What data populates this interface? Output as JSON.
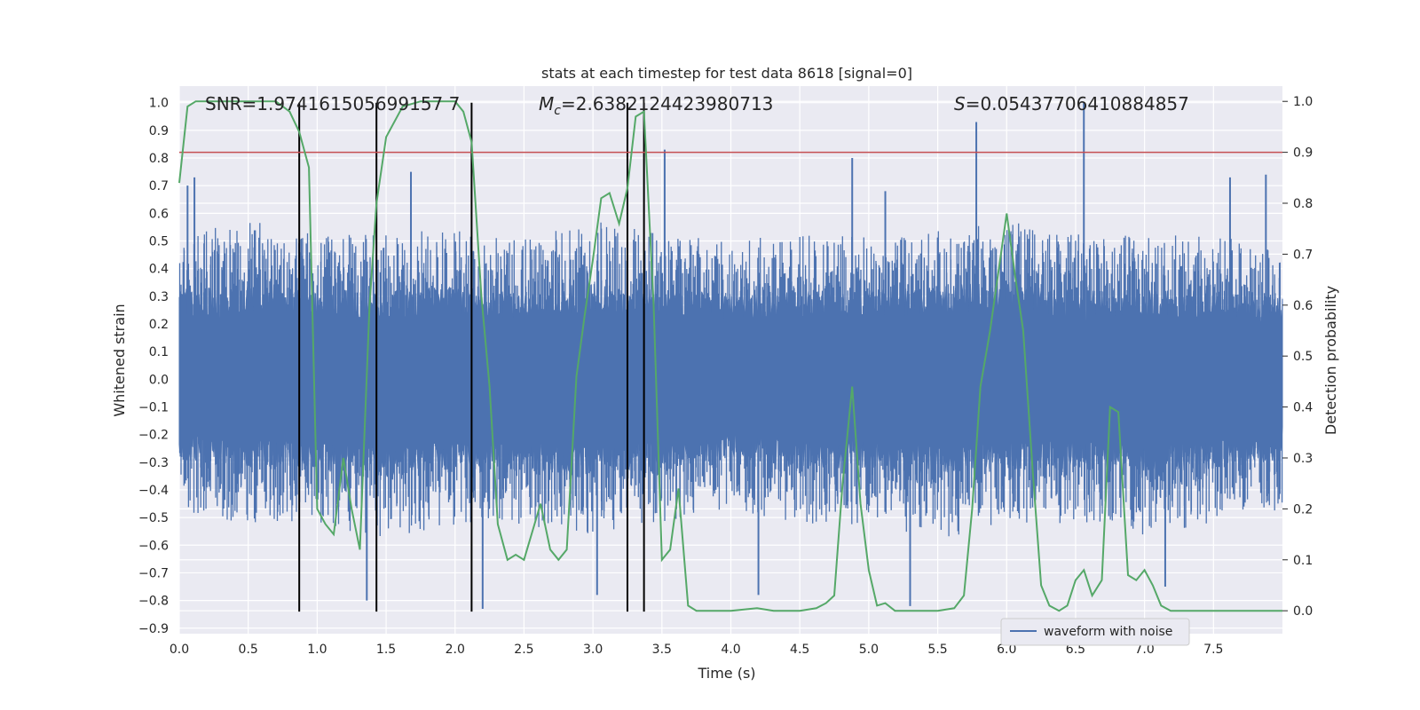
{
  "chart_data": {
    "type": "line",
    "title": "stats at each timestep for test data 8618 [signal=0]",
    "xlabel": "Time (s)",
    "ylabel_left": "Whitened strain",
    "ylabel_right": "Detection probability",
    "xlim": [
      0,
      8
    ],
    "ylim_left": [
      -0.92,
      1.06
    ],
    "ylim_right": [
      -0.045,
      1.03
    ],
    "x_ticks": [
      "0.0",
      "0.5",
      "1.0",
      "1.5",
      "2.0",
      "2.5",
      "3.0",
      "3.5",
      "4.0",
      "4.5",
      "5.0",
      "5.5",
      "6.0",
      "6.5",
      "7.0",
      "7.5"
    ],
    "y_left_ticks": [
      "1.0",
      "0.9",
      "0.8",
      "0.7",
      "0.6",
      "0.5",
      "0.4",
      "0.3",
      "0.2",
      "0.1",
      "0.0",
      "−0.1",
      "−0.2",
      "−0.3",
      "−0.4",
      "−0.5",
      "−0.6",
      "−0.7",
      "−0.8",
      "−0.9"
    ],
    "y_right_ticks": [
      "1.0",
      "0.9",
      "0.8",
      "0.7",
      "0.6",
      "0.5",
      "0.4",
      "0.3",
      "0.2",
      "0.1",
      "0.0"
    ],
    "grid": true,
    "legend": {
      "position": "lower-right",
      "entries": [
        "waveform with noise"
      ]
    },
    "annotations": {
      "snr": "SNR=1.974161505699157 7",
      "mc_symbol": "M",
      "mc_sub": "c",
      "mc_value": "=2.6382124423980713",
      "s_symbol": "S",
      "s_value": "=0.05437706410884857"
    },
    "threshold_right": 0.9,
    "vertical_markers_x": [
      0.87,
      1.43,
      2.12,
      3.25,
      3.37
    ],
    "waveform_envelope": {
      "x": [
        0.0,
        0.5,
        1.0,
        1.5,
        2.0,
        2.5,
        3.0,
        3.5,
        4.0,
        4.5,
        5.0,
        5.5,
        6.0,
        6.5,
        7.0,
        7.5,
        8.0
      ],
      "upper": [
        0.5,
        0.55,
        0.5,
        0.5,
        0.52,
        0.48,
        0.55,
        0.5,
        0.48,
        0.5,
        0.5,
        0.52,
        0.55,
        0.5,
        0.5,
        0.5,
        0.45
      ],
      "lower": [
        -0.45,
        -0.5,
        -0.5,
        -0.55,
        -0.5,
        -0.5,
        -0.55,
        -0.5,
        -0.45,
        -0.5,
        -0.5,
        -0.55,
        -0.5,
        -0.5,
        -0.55,
        -0.5,
        -0.45
      ],
      "spikes": [
        {
          "x": 5.78,
          "y": 0.93
        },
        {
          "x": 6.56,
          "y": 1.0
        },
        {
          "x": 0.06,
          "y": 0.7
        },
        {
          "x": 0.11,
          "y": 0.73
        },
        {
          "x": 1.68,
          "y": 0.75
        },
        {
          "x": 4.88,
          "y": 0.8
        },
        {
          "x": 3.52,
          "y": 0.83
        },
        {
          "x": 2.2,
          "y": -0.83
        },
        {
          "x": 5.3,
          "y": -0.82
        },
        {
          "x": 1.36,
          "y": -0.8
        },
        {
          "x": 3.03,
          "y": -0.78
        },
        {
          "x": 4.2,
          "y": -0.78
        },
        {
          "x": 7.15,
          "y": -0.75
        },
        {
          "x": 5.12,
          "y": 0.68
        },
        {
          "x": 7.62,
          "y": 0.73
        },
        {
          "x": 7.88,
          "y": 0.74
        }
      ]
    },
    "series": [
      {
        "name": "detection probability",
        "axis": "right",
        "color": "#55a868",
        "x": [
          0.0,
          0.06,
          0.12,
          0.25,
          0.5,
          0.7,
          0.8,
          0.87,
          0.94,
          1.0,
          1.06,
          1.12,
          1.19,
          1.25,
          1.31,
          1.38,
          1.43,
          1.5,
          1.62,
          1.75,
          1.88,
          2.0,
          2.06,
          2.12,
          2.19,
          2.25,
          2.31,
          2.38,
          2.44,
          2.5,
          2.62,
          2.69,
          2.75,
          2.81,
          2.88,
          2.94,
          3.0,
          3.06,
          3.12,
          3.19,
          3.25,
          3.31,
          3.37,
          3.44,
          3.5,
          3.56,
          3.62,
          3.69,
          3.75,
          3.88,
          4.0,
          4.19,
          4.31,
          4.5,
          4.62,
          4.69,
          4.75,
          4.81,
          4.88,
          4.94,
          5.0,
          5.06,
          5.12,
          5.19,
          5.31,
          5.5,
          5.62,
          5.69,
          5.75,
          5.81,
          5.88,
          6.0,
          6.06,
          6.12,
          6.19,
          6.25,
          6.31,
          6.38,
          6.44,
          6.5,
          6.56,
          6.62,
          6.69,
          6.75,
          6.81,
          6.88,
          6.94,
          7.0,
          7.06,
          7.12,
          7.19,
          7.25,
          7.5,
          7.75,
          8.0
        ],
        "y": [
          0.84,
          0.99,
          1.0,
          1.0,
          1.0,
          1.0,
          0.98,
          0.94,
          0.87,
          0.2,
          0.17,
          0.15,
          0.3,
          0.2,
          0.12,
          0.6,
          0.8,
          0.93,
          0.99,
          1.0,
          1.0,
          1.0,
          0.98,
          0.92,
          0.62,
          0.44,
          0.17,
          0.1,
          0.11,
          0.1,
          0.21,
          0.12,
          0.1,
          0.12,
          0.46,
          0.58,
          0.69,
          0.81,
          0.82,
          0.76,
          0.83,
          0.97,
          0.98,
          0.6,
          0.1,
          0.12,
          0.24,
          0.01,
          0.0,
          0.0,
          0.0,
          0.005,
          0.0,
          0.0,
          0.005,
          0.015,
          0.03,
          0.25,
          0.44,
          0.21,
          0.08,
          0.01,
          0.015,
          0.0,
          0.0,
          0.0,
          0.005,
          0.03,
          0.2,
          0.44,
          0.55,
          0.78,
          0.66,
          0.55,
          0.27,
          0.05,
          0.01,
          0.0,
          0.01,
          0.06,
          0.08,
          0.03,
          0.06,
          0.4,
          0.39,
          0.07,
          0.06,
          0.08,
          0.05,
          0.01,
          0.0,
          0.0,
          0.0,
          0.0,
          0.0
        ]
      }
    ],
    "threshold_color": "#c44e52",
    "waveform_color": "#4c72b0",
    "marker_color": "#000000",
    "background_color": "#eaeaf2"
  }
}
